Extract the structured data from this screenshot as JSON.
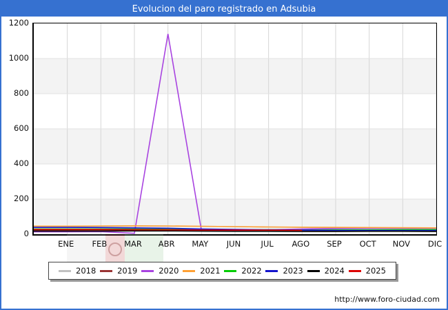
{
  "window": {
    "title": "Evolucion del paro registrado en Adsubia"
  },
  "footer": {
    "url": "http://www.foro-ciudad.com"
  },
  "chart_data": {
    "type": "line",
    "title": "Evolucion del paro registrado en Adsubia",
    "xlabel": "",
    "ylabel": "",
    "categories": [
      "ENE",
      "FEB",
      "MAR",
      "ABR",
      "MAY",
      "JUN",
      "JUL",
      "AGO",
      "SEP",
      "OCT",
      "NOV",
      "DIC"
    ],
    "y_ticks": [
      0,
      200,
      400,
      600,
      800,
      1000,
      1200
    ],
    "ylim": [
      0,
      1200
    ],
    "grid": true,
    "legend_position": "bottom",
    "series": [
      {
        "name": "2018",
        "color": "#c0c0c0",
        "values": [
          44,
          45,
          46,
          46,
          45,
          43,
          41,
          39,
          37,
          35,
          33,
          31
        ]
      },
      {
        "name": "2019",
        "color": "#993333",
        "values": [
          23,
          24,
          24,
          25,
          24,
          23,
          22,
          21,
          20,
          19,
          19,
          18
        ]
      },
      {
        "name": "2020",
        "color": "#a843e0",
        "values": [
          14,
          15,
          5,
          1140,
          20,
          22,
          25,
          30,
          33,
          34,
          34,
          34
        ]
      },
      {
        "name": "2021",
        "color": "#ffa033",
        "values": [
          46,
          47,
          48,
          47,
          45,
          43,
          41,
          40,
          39,
          38,
          37,
          36
        ]
      },
      {
        "name": "2022",
        "color": "#00cc00",
        "values": [
          30,
          30,
          29,
          28,
          27,
          26,
          25,
          24,
          25,
          25,
          26,
          26
        ]
      },
      {
        "name": "2023",
        "color": "#1313cc",
        "values": [
          39,
          38,
          36,
          34,
          30,
          27,
          25,
          23,
          22,
          22,
          21,
          21
        ]
      },
      {
        "name": "2024",
        "color": "#000000",
        "values": [
          18,
          18,
          19,
          19,
          18,
          17,
          17,
          16,
          16,
          17,
          17,
          16
        ]
      },
      {
        "name": "2025",
        "color": "#dd0000",
        "values": [
          27,
          27,
          26,
          25,
          24,
          24,
          23,
          22,
          null,
          null,
          null,
          null
        ]
      }
    ]
  }
}
